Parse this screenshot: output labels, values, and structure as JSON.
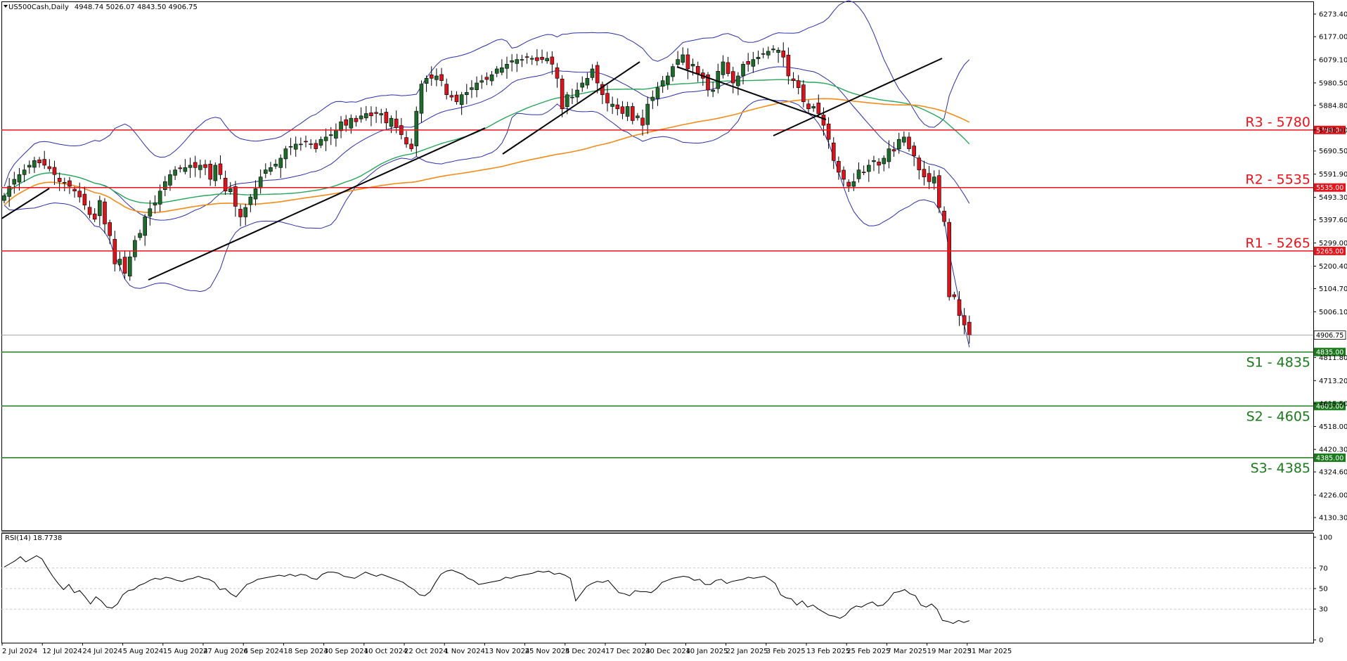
{
  "header": {
    "symbol": "US500Cash,Daily",
    "ohlc": "4948.74 5026.07 4843.50 4906.75",
    "rsi_label": "RSI(14) 18.7738"
  },
  "colors": {
    "bull": "#1e6b2b",
    "bear": "#d8141c",
    "resistance": "#e8141c",
    "support": "#1b7a1b",
    "bb": "#2b2fa8",
    "ma_green": "#28a65a",
    "ma_orange": "#f28c1a",
    "trend": "#000000",
    "grid": "#c8c8c8"
  },
  "chart_data": [
    {
      "type": "candlestick",
      "title": "US500Cash,Daily",
      "ylim": [
        4130.3,
        6273.4
      ],
      "price_ticks": [
        "6273.40",
        "6177.00",
        "6079.10",
        "5980.50",
        "5884.80",
        "5780.00",
        "5690.50",
        "5591.90",
        "5493.30",
        "5397.60",
        "5299.00",
        "5200.40",
        "5104.70",
        "5006.10",
        "4906.75",
        "4811.80",
        "4713.20",
        "4615.50",
        "4518.00",
        "4420.30",
        "4324.60",
        "4226.00",
        "4130.30"
      ],
      "date_labels": [
        "2 Jul 2024",
        "12 Jul 2024",
        "24 Jul 2024",
        "5 Aug 2024",
        "15 Aug 2024",
        "27 Aug 2024",
        "6 Sep 2024",
        "18 Sep 2024",
        "30 Sep 2024",
        "10 Oct 2024",
        "22 Oct 2024",
        "1 Nov 2024",
        "13 Nov 2024",
        "25 Nov 2024",
        "5 Dec 2024",
        "17 Dec 2024",
        "30 Dec 2024",
        "10 Jan 2025",
        "22 Jan 2025",
        "3 Feb 2025",
        "13 Feb 2025",
        "25 Feb 2025",
        "7 Mar 2025",
        "19 Mar 2025",
        "31 Mar 2025"
      ],
      "current_price": 4906.75,
      "levels": [
        {
          "label": "R3 - 5780",
          "value": 5780,
          "tag": "5780.00",
          "kind": "resistance"
        },
        {
          "label": "R2 - 5535",
          "value": 5535,
          "tag": "5535.00",
          "kind": "resistance"
        },
        {
          "label": "R1 - 5265",
          "value": 5265,
          "tag": "5265.00",
          "kind": "resistance"
        },
        {
          "label": "S1 - 4835",
          "value": 4835,
          "tag": "4835.00",
          "kind": "support"
        },
        {
          "label": "S2 - 4605",
          "value": 4605,
          "tag": "4605.00",
          "kind": "support"
        },
        {
          "label": "S3- 4385",
          "value": 4385,
          "tag": "4385.00",
          "kind": "support"
        }
      ],
      "closes": [
        5500,
        5540,
        5570,
        5590,
        5610,
        5630,
        5650,
        5640,
        5630,
        5615,
        5590,
        5560,
        5555,
        5540,
        5520,
        5495,
        5460,
        5420,
        5400,
        5480,
        5380,
        5330,
        5210,
        5230,
        5170,
        5240,
        5310,
        5340,
        5410,
        5445,
        5470,
        5520,
        5560,
        5590,
        5610,
        5615,
        5620,
        5630,
        5620,
        5630,
        5620,
        5570,
        5630,
        5590,
        5520,
        5530,
        5455,
        5410,
        5450,
        5495,
        5530,
        5580,
        5610,
        5620,
        5635,
        5660,
        5700,
        5710,
        5720,
        5720,
        5730,
        5720,
        5700,
        5740,
        5750,
        5760,
        5780,
        5815,
        5800,
        5830,
        5815,
        5840,
        5850,
        5840,
        5850,
        5850,
        5810,
        5830,
        5790,
        5760,
        5720,
        5700,
        5860,
        5975,
        6000,
        6000,
        6010,
        5990,
        5930,
        5920,
        5900,
        5930,
        5940,
        5960,
        5980,
        5990,
        5995,
        6015,
        6040,
        6045,
        6060,
        6075,
        6080,
        6080,
        6090,
        6085,
        6075,
        6080,
        6085,
        6060,
        6000,
        5870,
        5930,
        5920,
        5950,
        5980,
        6000,
        6040,
        5980,
        5930,
        5895,
        5890,
        5870,
        5850,
        5880,
        5820,
        5840,
        5800,
        5890,
        5920,
        5960,
        5990,
        6010,
        6050,
        6080,
        6100,
        6040,
        6060,
        6020,
        6000,
        5950,
        5950,
        6030,
        6070,
        6020,
        5980,
        6010,
        6060,
        6060,
        6080,
        6090,
        6105,
        6115,
        6125,
        6120,
        6090,
        6010,
        5990,
        5960,
        5900,
        5870,
        5880,
        5850,
        5800,
        5740,
        5650,
        5600,
        5570,
        5540,
        5560,
        5610,
        5600,
        5630,
        5650,
        5630,
        5660,
        5700,
        5690,
        5740,
        5750,
        5700,
        5670,
        5610,
        5580,
        5560,
        5580,
        5450,
        5390,
        5070,
        5070,
        4990,
        4950,
        4906.75
      ],
      "series": [
        {
          "name": "",
          "kind": "bollinger_upper"
        },
        {
          "name": "",
          "kind": "bollinger_middle"
        },
        {
          "name": "",
          "kind": "bollinger_lower"
        },
        {
          "name": "",
          "kind": "ma_fast"
        },
        {
          "name": "",
          "kind": "ma_slow"
        }
      ]
    },
    {
      "type": "line",
      "title": "RSI(14) 18.7738",
      "ylim": [
        0,
        100
      ],
      "y_ticks": [
        "100",
        "70",
        "50",
        "30",
        "0"
      ],
      "levels": [
        70,
        50,
        30
      ],
      "series": [
        {
          "name": "",
          "values": [
            71,
            74,
            77,
            81,
            76,
            79,
            82,
            79,
            70,
            62,
            55,
            49,
            54,
            46,
            48,
            42,
            35,
            42,
            38,
            32,
            31,
            35,
            44,
            48,
            49,
            53,
            55,
            58,
            60,
            59,
            61,
            60,
            58,
            57,
            59,
            60,
            62,
            60,
            59,
            56,
            49,
            50,
            45,
            42,
            48,
            54,
            56,
            59,
            60,
            61,
            62,
            63,
            62,
            64,
            62,
            64,
            63,
            60,
            59,
            64,
            66,
            66,
            65,
            62,
            61,
            60,
            63,
            66,
            64,
            62,
            64,
            62,
            60,
            58,
            56,
            52,
            49,
            44,
            43,
            47,
            56,
            64,
            67,
            68,
            66,
            64,
            60,
            58,
            54,
            55,
            56,
            57,
            58,
            61,
            60,
            62,
            63,
            64,
            65,
            67,
            66,
            67,
            64,
            65,
            63,
            60,
            38,
            45,
            52,
            55,
            57,
            56,
            58,
            52,
            46,
            45,
            43,
            48,
            47,
            47,
            46,
            50,
            56,
            58,
            60,
            61,
            62,
            61,
            58,
            59,
            54,
            54,
            58,
            59,
            55,
            57,
            58,
            59,
            61,
            60,
            61,
            62,
            59,
            55,
            44,
            41,
            40,
            34,
            38,
            32,
            34,
            30,
            27,
            24,
            23,
            21,
            24,
            30,
            33,
            32,
            35,
            37,
            33,
            34,
            39,
            46,
            47,
            49,
            45,
            43,
            34,
            32,
            35,
            30,
            19,
            18,
            16,
            19,
            17,
            18.77
          ]
        }
      ]
    }
  ]
}
